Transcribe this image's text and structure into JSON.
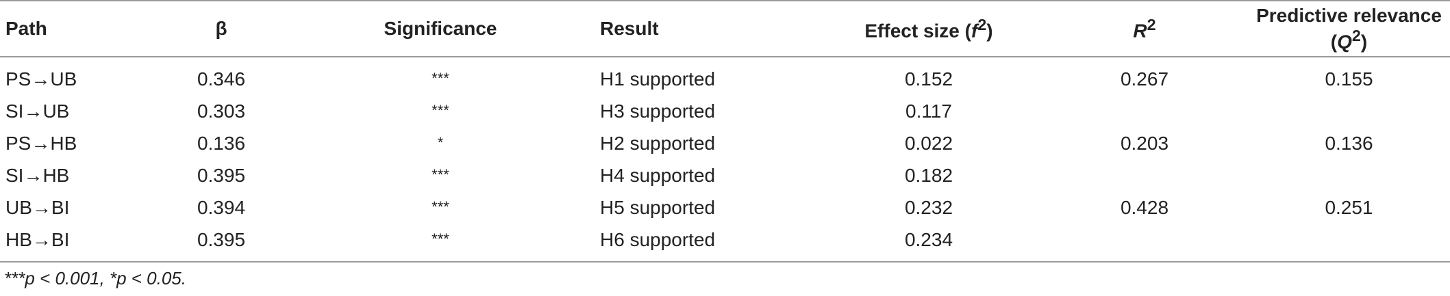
{
  "table": {
    "headers": {
      "path": "Path",
      "beta": "β",
      "significance": "Significance",
      "result": "Result",
      "effect_size_prefix": "Effect size (",
      "effect_size_var": "f",
      "effect_size_sup": "2",
      "effect_size_suffix": ")",
      "r2_var": "R",
      "r2_sup": "2",
      "q2_prefix": "Predictive relevance (",
      "q2_var": "Q",
      "q2_sup": "2",
      "q2_suffix": ")"
    },
    "rows": [
      {
        "path": "PS→UB",
        "beta": "0.346",
        "significance": "***",
        "result": "H1 supported",
        "effect_size": "0.152",
        "r2": "0.267",
        "q2": "0.155"
      },
      {
        "path": "SI→UB",
        "beta": "0.303",
        "significance": "***",
        "result": "H3 supported",
        "effect_size": "0.117",
        "r2": "",
        "q2": ""
      },
      {
        "path": "PS→HB",
        "beta": "0.136",
        "significance": "*",
        "result": "H2 supported",
        "effect_size": "0.022",
        "r2": "0.203",
        "q2": "0.136"
      },
      {
        "path": "SI→HB",
        "beta": "0.395",
        "significance": "***",
        "result": "H4 supported",
        "effect_size": "0.182",
        "r2": "",
        "q2": ""
      },
      {
        "path": "UB→BI",
        "beta": "0.394",
        "significance": "***",
        "result": "H5 supported",
        "effect_size": "0.232",
        "r2": "0.428",
        "q2": "0.251"
      },
      {
        "path": "HB→BI",
        "beta": "0.395",
        "significance": "***",
        "result": "H6 supported",
        "effect_size": "0.234",
        "r2": "",
        "q2": ""
      }
    ]
  },
  "footnote": "***p < 0.001, *p < 0.05."
}
